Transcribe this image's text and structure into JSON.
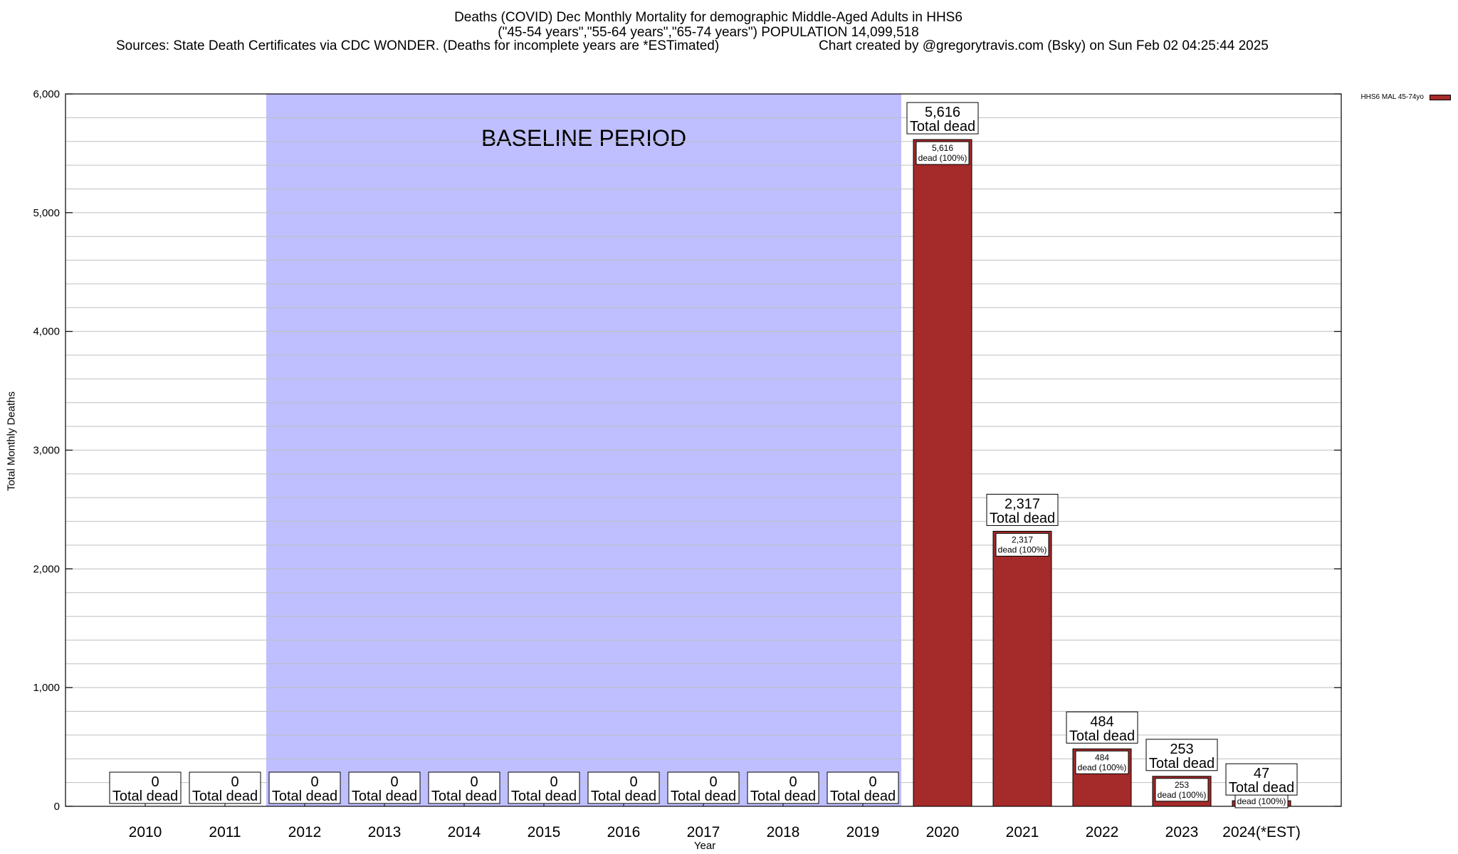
{
  "header": {
    "title_line1": "Deaths (COVID) Dec Monthly Mortality for demographic Middle-Aged Adults in HHS6",
    "title_line2": "(\"45-54 years\",\"55-64 years\",\"65-74 years\") POPULATION 14,099,518",
    "sources": "Sources: State Death Certificates via CDC WONDER. (Deaths for incomplete years are *ESTimated)",
    "credit": "Chart created by @gregorytravis.com (Bsky) on Sun Feb 02 04:25:44 2025"
  },
  "chart_data": {
    "type": "bar",
    "categories": [
      "2010",
      "2011",
      "2012",
      "2013",
      "2014",
      "2015",
      "2016",
      "2017",
      "2018",
      "2019",
      "2020",
      "2021",
      "2022",
      "2023",
      "2024(*EST)"
    ],
    "series": [
      {
        "name": "HHS6 MAL 45-74yo",
        "values": [
          0,
          0,
          0,
          0,
          0,
          0,
          0,
          0,
          0,
          0,
          5616,
          2317,
          484,
          253,
          47
        ]
      }
    ],
    "total_labels": [
      "0",
      "0",
      "0",
      "0",
      "0",
      "0",
      "0",
      "0",
      "0",
      "0",
      "5,616",
      "2,317",
      "484",
      "253",
      "47"
    ],
    "total_suffix": "Total dead",
    "inner_labels": [
      "",
      "",
      "",
      "",
      "",
      "",
      "",
      "",
      "",
      "",
      "5,616",
      "2,317",
      "484",
      "253",
      "47"
    ],
    "inner_suffix": "dead (100%)",
    "baseline_label": "BASELINE PERIOD",
    "baseline_range": [
      "2012",
      "2019"
    ],
    "xlabel": "Year",
    "ylabel": "Total Monthly Deaths",
    "ylim": [
      0,
      6000
    ],
    "yticks": [
      0,
      1000,
      2000,
      3000,
      4000,
      5000,
      6000
    ],
    "ytick_labels": [
      "0",
      "1,000",
      "2,000",
      "3,000",
      "4,000",
      "5,000",
      "6,000"
    ],
    "grid": true,
    "legend_position": "top-right",
    "colors": {
      "bar": "#a52a2a",
      "baseline": "#bfbfff",
      "grid": "#bfbfbf"
    }
  }
}
